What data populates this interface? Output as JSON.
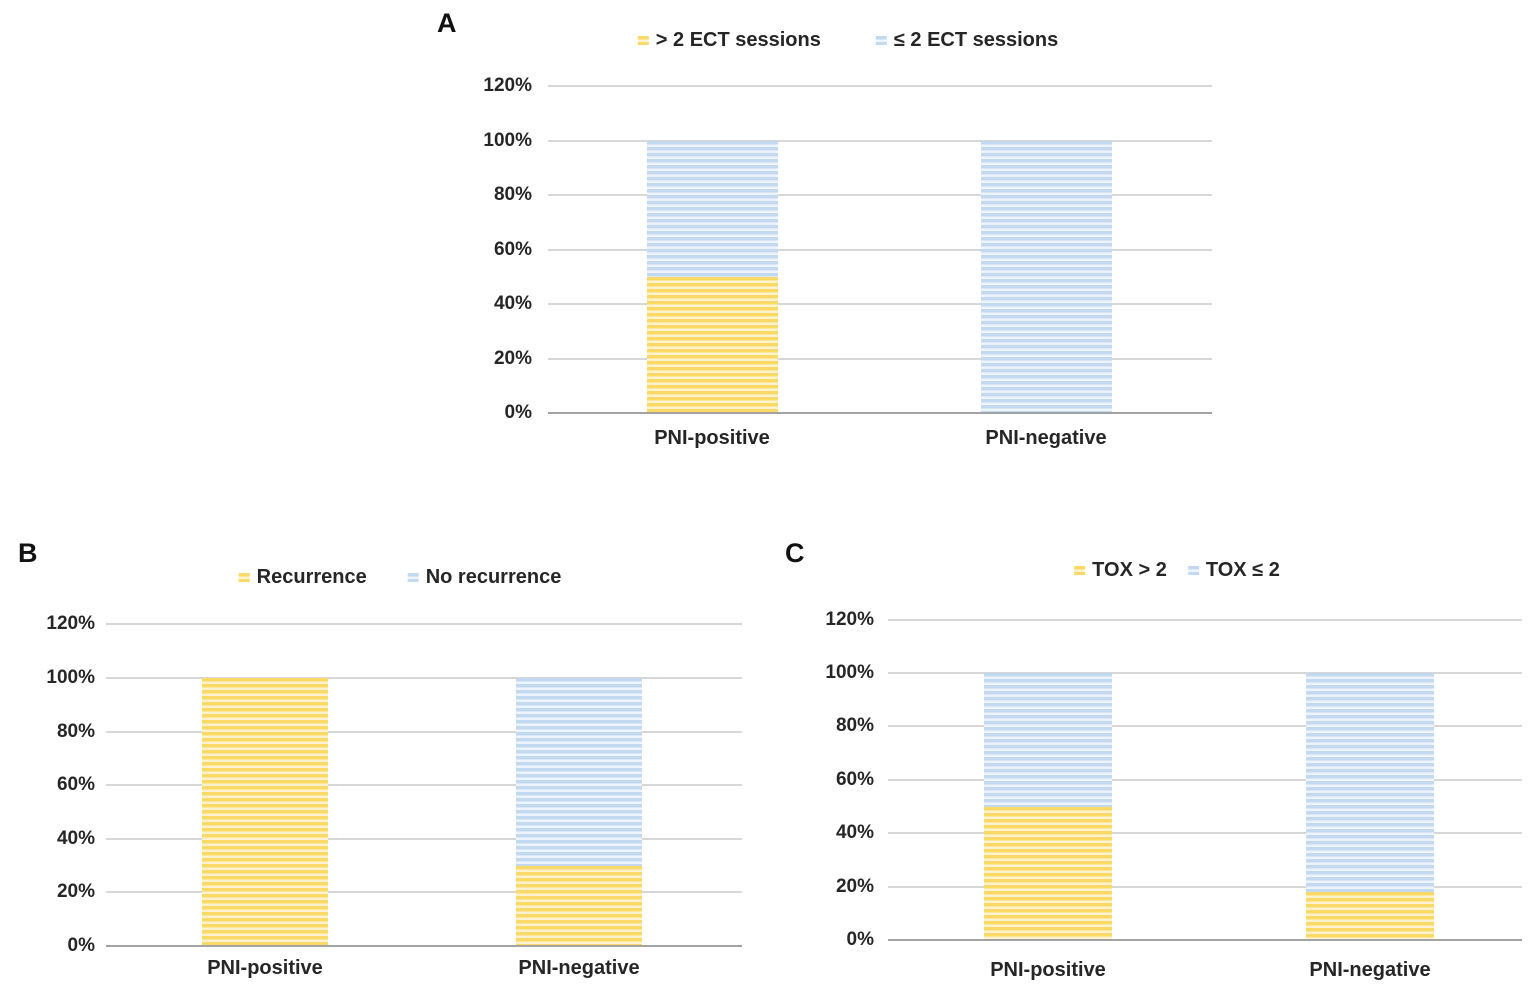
{
  "figure": {
    "background": "#ffffff"
  },
  "colors": {
    "series_yellow": "#fbd967",
    "series_yellow_light": "#fdf2cf",
    "series_blue": "#c3d9ef",
    "series_blue_light": "#edf4fb",
    "gridline": "#d7d7d7",
    "axis_line": "#a3a3a3",
    "text": "#262626",
    "panel_letter": "#111111"
  },
  "chart_data": [
    {
      "panel": "A",
      "type": "bar",
      "stacked": true,
      "unit": "percent",
      "categories": [
        "PNI-positive",
        "PNI-negative"
      ],
      "series": [
        {
          "name": "> 2 ECT sessions",
          "color": "yellow",
          "values": [
            50,
            0
          ]
        },
        {
          "name": "≤ 2 ECT sessions",
          "color": "blue",
          "values": [
            50,
            100
          ]
        }
      ],
      "yticks": [
        "0%",
        "20%",
        "40%",
        "60%",
        "80%",
        "100%",
        "120%"
      ],
      "ylim": [
        0,
        120
      ],
      "grid": true,
      "legend_position": "top"
    },
    {
      "panel": "B",
      "type": "bar",
      "stacked": true,
      "unit": "percent",
      "categories": [
        "PNI-positive",
        "PNI-negative"
      ],
      "series": [
        {
          "name": "Recurrence",
          "color": "yellow",
          "values": [
            100,
            30
          ]
        },
        {
          "name": "No recurrence",
          "color": "blue",
          "values": [
            0,
            70
          ]
        }
      ],
      "yticks": [
        "0%",
        "20%",
        "40%",
        "60%",
        "80%",
        "100%",
        "120%"
      ],
      "ylim": [
        0,
        120
      ],
      "grid": true,
      "legend_position": "top"
    },
    {
      "panel": "C",
      "type": "bar",
      "stacked": true,
      "unit": "percent",
      "categories": [
        "PNI-positive",
        "PNI-negative"
      ],
      "series": [
        {
          "name": "TOX > 2",
          "color": "yellow",
          "values": [
            50,
            18
          ]
        },
        {
          "name": "TOX ≤ 2",
          "color": "blue",
          "values": [
            50,
            82
          ]
        }
      ],
      "yticks": [
        "0%",
        "20%",
        "40%",
        "60%",
        "80%",
        "100%",
        "120%"
      ],
      "ylim": [
        0,
        120
      ],
      "grid": true,
      "legend_position": "top"
    }
  ]
}
